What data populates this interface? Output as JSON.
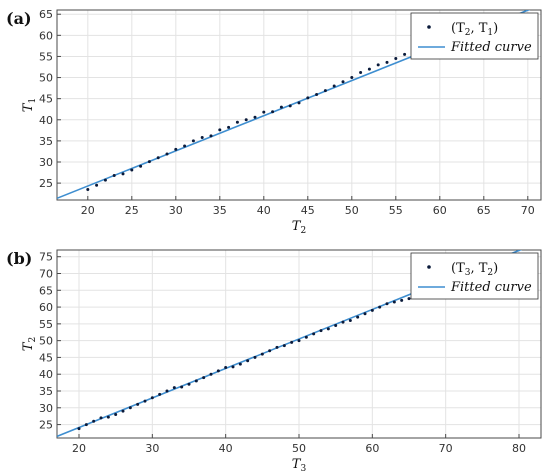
{
  "chart_data": [
    {
      "panel_label": "(a)",
      "type": "scatter",
      "xlabel": "T",
      "xlabel_sub": "2",
      "ylabel": "T",
      "ylabel_sub": "1",
      "xlim": [
        16.5,
        71.5
      ],
      "ylim": [
        21,
        66
      ],
      "xticks": [
        20,
        25,
        30,
        35,
        40,
        45,
        50,
        55,
        60,
        65,
        70
      ],
      "yticks": [
        25,
        30,
        35,
        40,
        45,
        50,
        55,
        60,
        65
      ],
      "grid": true,
      "legend": {
        "placement": "top-right",
        "entries": [
          {
            "marker": "point",
            "pre": "(T",
            "sub1": "2",
            "mid": ", T",
            "sub2": "1",
            "post": ")"
          },
          {
            "marker": "line",
            "text": "Fitted curve"
          }
        ]
      },
      "series": [
        {
          "kind": "points",
          "x": [
            20,
            21,
            22,
            23,
            24,
            25,
            26,
            27,
            28,
            29,
            30,
            31,
            32,
            33,
            34,
            35,
            36,
            37,
            38,
            39,
            40,
            41,
            42,
            43,
            44,
            45,
            46,
            47,
            48,
            49,
            50,
            51,
            52,
            53,
            54,
            55,
            56
          ],
          "y": [
            23.5,
            24.5,
            25.7,
            26.8,
            27.2,
            28.1,
            29.0,
            30.1,
            31.0,
            31.9,
            33.0,
            33.8,
            35.0,
            35.8,
            36.2,
            37.6,
            38.2,
            39.4,
            40.0,
            40.6,
            41.8,
            41.9,
            43.0,
            43.3,
            44.0,
            45.2,
            46.0,
            46.9,
            48.0,
            49.0,
            50.0,
            51.2,
            52.0,
            53.0,
            53.6,
            54.5,
            55.5
          ]
        },
        {
          "kind": "fit",
          "x": [
            16.5,
            71.5
          ],
          "y": [
            21.4,
            67.2
          ]
        }
      ]
    },
    {
      "panel_label": "(b)",
      "type": "scatter",
      "xlabel": "T",
      "xlabel_sub": "3",
      "ylabel": "T",
      "ylabel_sub": "2",
      "xlim": [
        17,
        83
      ],
      "ylim": [
        21,
        77
      ],
      "xticks": [
        20,
        30,
        40,
        50,
        60,
        70,
        80
      ],
      "yticks": [
        25,
        30,
        35,
        40,
        45,
        50,
        55,
        60,
        65,
        70,
        75
      ],
      "grid": true,
      "legend": {
        "placement": "top-right",
        "entries": [
          {
            "marker": "point",
            "pre": "(T",
            "sub1": "3",
            "mid": ", T",
            "sub2": "2",
            "post": ")"
          },
          {
            "marker": "line",
            "text": "Fitted curve"
          }
        ]
      },
      "series": [
        {
          "kind": "points",
          "x": [
            20,
            21,
            22,
            23,
            24,
            25,
            26,
            27,
            28,
            29,
            30,
            31,
            32,
            33,
            34,
            35,
            36,
            37,
            38,
            39,
            40,
            41,
            42,
            43,
            44,
            45,
            46,
            47,
            48,
            49,
            50,
            51,
            52,
            53,
            54,
            55,
            56,
            57,
            58,
            59,
            60,
            61,
            62,
            63,
            64,
            65
          ],
          "y": [
            23.8,
            25.0,
            26.0,
            27.0,
            27.2,
            28.0,
            29.0,
            30.0,
            31.0,
            32.0,
            33.0,
            34.0,
            35.0,
            36.0,
            36.2,
            37.0,
            38.0,
            39.0,
            40.0,
            41.0,
            42.0,
            42.2,
            43.0,
            44.0,
            45.0,
            46.0,
            47.0,
            48.0,
            48.5,
            49.5,
            50.0,
            51.0,
            52.0,
            53.0,
            53.5,
            54.5,
            55.5,
            56.0,
            57.0,
            58.0,
            59.0,
            60.0,
            61.0,
            61.5,
            62.0,
            62.5
          ]
        },
        {
          "kind": "fit",
          "x": [
            17,
            83
          ],
          "y": [
            21.5,
            79.5
          ]
        }
      ]
    }
  ]
}
